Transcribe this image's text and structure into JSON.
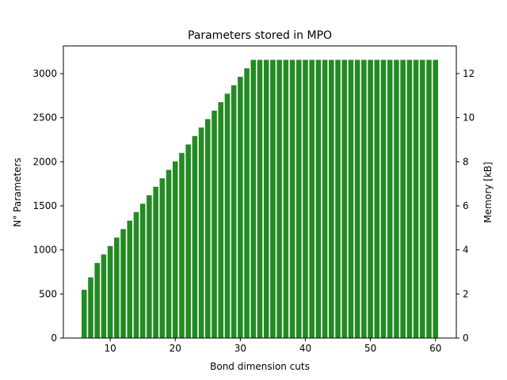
{
  "chart_data": {
    "type": "bar",
    "title": "Parameters stored in MPO",
    "xlabel": "Bond dimension cuts",
    "ylabel": "N° Parameters",
    "y2label": "Memory [kB]",
    "x": [
      6,
      7,
      8,
      9,
      10,
      11,
      12,
      13,
      14,
      15,
      16,
      17,
      18,
      19,
      20,
      21,
      22,
      23,
      24,
      25,
      26,
      27,
      28,
      29,
      30,
      31,
      32,
      33,
      34,
      35,
      36,
      37,
      38,
      39,
      40,
      41,
      42,
      43,
      44,
      45,
      46,
      47,
      48,
      49,
      50,
      51,
      52,
      53,
      54,
      55,
      56,
      57,
      58,
      59,
      60
    ],
    "values": [
      548,
      688,
      852,
      948,
      1044,
      1140,
      1236,
      1332,
      1428,
      1524,
      1620,
      1716,
      1812,
      1908,
      2004,
      2100,
      2196,
      2292,
      2388,
      2484,
      2580,
      2676,
      2772,
      2868,
      2964,
      3060,
      3156,
      3156,
      3156,
      3156,
      3156,
      3156,
      3156,
      3156,
      3156,
      3156,
      3156,
      3156,
      3156,
      3156,
      3156,
      3156,
      3156,
      3156,
      3156,
      3156,
      3156,
      3156,
      3156,
      3156,
      3156,
      3156,
      3156,
      3156,
      3156
    ],
    "xlim": [
      2.8,
      63.2
    ],
    "ylim": [
      0,
      3314
    ],
    "y2lim": [
      0,
      13.256
    ],
    "xticks": [
      10,
      20,
      30,
      40,
      50,
      60
    ],
    "yticks": [
      0,
      500,
      1000,
      1500,
      2000,
      2500,
      3000
    ],
    "y2ticks": [
      0,
      2,
      4,
      6,
      8,
      10,
      12
    ],
    "bar_color": "#228b22",
    "grid": false,
    "legend": "none"
  }
}
